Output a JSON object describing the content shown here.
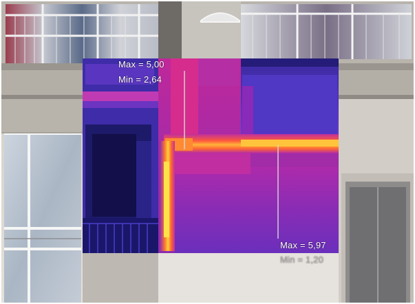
{
  "annotations": {
    "top_left": {
      "max": "Max = 5,00",
      "min": "Min = 2,64"
    },
    "bottom_right": {
      "max": "Max = 5,97",
      "min": "Min = 1,20"
    }
  },
  "colors": {
    "thermal_cold": "#2a1a8a",
    "thermal_mid": "#b21fa8",
    "thermal_warm": "#ff5a3c",
    "thermal_hot": "#ffd23a",
    "facade_light": "#d9d4cc",
    "facade_shadow": "#8a8680",
    "window_glass": "#b9c3cf"
  }
}
